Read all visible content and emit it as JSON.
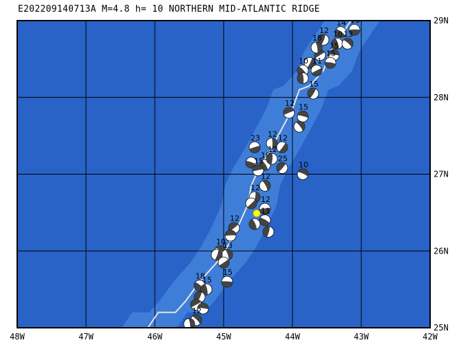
{
  "map": {
    "title": "E202209140713A M=4.8 h= 10 NORTHERN MID-ATLANTIC RIDGE",
    "lon_range": [
      -48,
      -42
    ],
    "lat_range": [
      25,
      29
    ],
    "lon_ticks": [
      {
        "value": -48,
        "label": "48W"
      },
      {
        "value": -47,
        "label": "47W"
      },
      {
        "value": -46,
        "label": "46W"
      },
      {
        "value": -45,
        "label": "45W"
      },
      {
        "value": -44,
        "label": "44W"
      },
      {
        "value": -43,
        "label": "43W"
      },
      {
        "value": -42,
        "label": "42W"
      }
    ],
    "lat_ticks": [
      {
        "value": 29,
        "label": "29N"
      },
      {
        "value": 28,
        "label": "28N"
      },
      {
        "value": 27,
        "label": "27N"
      },
      {
        "value": 26,
        "label": "26N"
      },
      {
        "value": 25,
        "label": "25N"
      }
    ],
    "colors": {
      "ocean_deep": "#2a63c7",
      "ocean_shallow": "#3f7ed8",
      "grid": "#000000",
      "plate_boundary": "#e6e6e6",
      "epicenter": "#ffff00",
      "beachball_dark": "#444444",
      "beachball_light": "#ffffff"
    },
    "main_event": {
      "lon": -44.52,
      "lat": 26.49,
      "marker": "yellow-star"
    },
    "plate_boundary": [
      [
        -46.1,
        25.0
      ],
      [
        -45.95,
        25.2
      ],
      [
        -45.7,
        25.2
      ],
      [
        -45.55,
        25.35
      ],
      [
        -45.35,
        25.6
      ],
      [
        -45.1,
        25.85
      ],
      [
        -44.95,
        26.05
      ],
      [
        -44.8,
        26.3
      ],
      [
        -44.65,
        26.6
      ],
      [
        -44.6,
        26.85
      ],
      [
        -44.5,
        27.05
      ],
      [
        -44.3,
        27.35
      ],
      [
        -44.15,
        27.6
      ],
      [
        -44.0,
        27.85
      ],
      [
        -43.9,
        28.1
      ],
      [
        -43.75,
        28.15
      ],
      [
        -43.55,
        28.35
      ],
      [
        -43.45,
        28.6
      ],
      [
        -43.3,
        28.8
      ],
      [
        -43.15,
        29.0
      ]
    ],
    "events": [
      {
        "lon": -43.1,
        "lat": 28.88,
        "label": "15"
      },
      {
        "lon": -43.3,
        "lat": 28.85,
        "label": "14"
      },
      {
        "lon": -43.35,
        "lat": 28.7,
        "label": "10"
      },
      {
        "lon": -43.55,
        "lat": 28.75,
        "label": "12"
      },
      {
        "lon": -43.6,
        "lat": 28.55,
        "label": ""
      },
      {
        "lon": -43.4,
        "lat": 28.55,
        "label": "15"
      },
      {
        "lon": -43.2,
        "lat": 28.7,
        "label": "13"
      },
      {
        "lon": -43.65,
        "lat": 28.65,
        "label": "18"
      },
      {
        "lon": -43.75,
        "lat": 28.45,
        "label": ""
      },
      {
        "lon": -43.65,
        "lat": 28.35,
        "label": "11"
      },
      {
        "lon": -43.45,
        "lat": 28.45,
        "label": "15"
      },
      {
        "lon": -43.85,
        "lat": 28.35,
        "label": "10"
      },
      {
        "lon": -43.85,
        "lat": 28.25,
        "label": ""
      },
      {
        "lon": -43.7,
        "lat": 28.05,
        "label": "15"
      },
      {
        "lon": -44.05,
        "lat": 27.8,
        "label": "12"
      },
      {
        "lon": -43.85,
        "lat": 27.75,
        "label": "15"
      },
      {
        "lon": -43.9,
        "lat": 27.62,
        "label": ""
      },
      {
        "lon": -44.3,
        "lat": 27.4,
        "label": "12"
      },
      {
        "lon": -44.15,
        "lat": 27.35,
        "label": "12"
      },
      {
        "lon": -44.55,
        "lat": 27.35,
        "label": "23"
      },
      {
        "lon": -44.6,
        "lat": 27.15,
        "label": ""
      },
      {
        "lon": -44.4,
        "lat": 27.12,
        "label": "18"
      },
      {
        "lon": -44.3,
        "lat": 27.2,
        "label": "12"
      },
      {
        "lon": -44.15,
        "lat": 27.08,
        "label": "25"
      },
      {
        "lon": -44.5,
        "lat": 27.05,
        "label": "15"
      },
      {
        "lon": -43.85,
        "lat": 27.0,
        "label": "10"
      },
      {
        "lon": -44.4,
        "lat": 26.85,
        "label": "12"
      },
      {
        "lon": -44.55,
        "lat": 26.7,
        "label": "12"
      },
      {
        "lon": -44.6,
        "lat": 26.62,
        "label": ""
      },
      {
        "lon": -44.4,
        "lat": 26.55,
        "label": "12"
      },
      {
        "lon": -44.4,
        "lat": 26.4,
        "label": "11"
      },
      {
        "lon": -44.55,
        "lat": 26.35,
        "label": ""
      },
      {
        "lon": -44.35,
        "lat": 26.25,
        "label": ""
      },
      {
        "lon": -44.85,
        "lat": 26.3,
        "label": "12"
      },
      {
        "lon": -44.9,
        "lat": 26.2,
        "label": ""
      },
      {
        "lon": -45.05,
        "lat": 26.0,
        "label": "10"
      },
      {
        "lon": -44.95,
        "lat": 25.95,
        "label": "13"
      },
      {
        "lon": -45.1,
        "lat": 25.95,
        "label": ""
      },
      {
        "lon": -45.0,
        "lat": 25.85,
        "label": ""
      },
      {
        "lon": -44.95,
        "lat": 25.6,
        "label": "15"
      },
      {
        "lon": -45.35,
        "lat": 25.55,
        "label": "18"
      },
      {
        "lon": -45.25,
        "lat": 25.5,
        "label": "15"
      },
      {
        "lon": -45.35,
        "lat": 25.4,
        "label": ""
      },
      {
        "lon": -45.4,
        "lat": 25.3,
        "label": ""
      },
      {
        "lon": -45.3,
        "lat": 25.25,
        "label": ""
      },
      {
        "lon": -45.4,
        "lat": 25.1,
        "label": "12"
      },
      {
        "lon": -45.5,
        "lat": 25.05,
        "label": ""
      }
    ]
  }
}
